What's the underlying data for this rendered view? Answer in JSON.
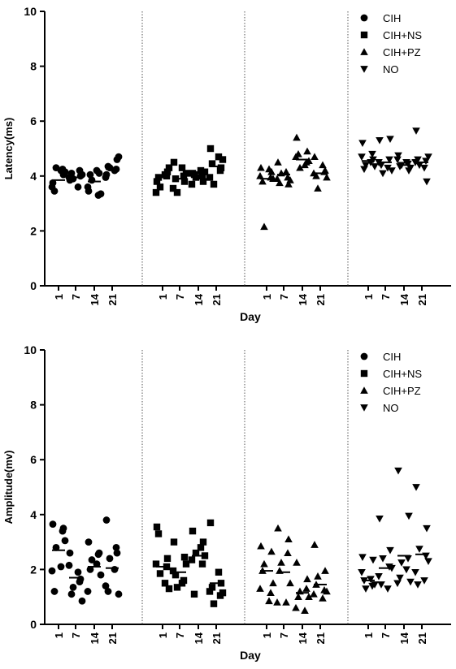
{
  "chart_data": [
    {
      "type": "scatter",
      "title": "",
      "xlabel": "Day",
      "ylabel": "Latency(ms)",
      "ylim": [
        0,
        10
      ],
      "yticks": [
        "0",
        "2",
        "4",
        "6",
        "8",
        "10"
      ],
      "categories": [
        "1",
        "7",
        "14",
        "21"
      ],
      "grid": false,
      "legend_position": "top-right",
      "series": [
        {
          "name": "CIH",
          "marker": "circle",
          "points": [
            [
              3.75,
              4.05,
              4.3,
              4.15,
              3.6,
              4.2,
              3.45,
              4.25
            ],
            [
              3.85,
              4.0,
              3.9,
              4.05,
              3.95,
              3.6,
              4.1,
              4.2
            ],
            [
              3.45,
              4.1,
              3.85,
              3.35,
              3.6,
              4.2,
              4.05,
              3.3
            ],
            [
              4.05,
              4.6,
              4.3,
              4.7,
              3.95,
              4.2,
              4.35,
              4.25
            ]
          ],
          "means": [
            3.85,
            3.95,
            3.8,
            4.25
          ]
        },
        {
          "name": "CIH+NS",
          "marker": "square",
          "points": [
            [
              3.8,
              4.15,
              3.6,
              4.3,
              3.4,
              4.05,
              3.95,
              4.0
            ],
            [
              4.5,
              3.8,
              3.4,
              4.1,
              3.55,
              4.3,
              3.9,
              4.0
            ],
            [
              4.1,
              3.8,
              3.95,
              4.15,
              3.7,
              4.2,
              4.05,
              4.0
            ],
            [
              5.0,
              4.3,
              3.7,
              4.6,
              3.95,
              4.7,
              4.45,
              4.2
            ]
          ],
          "means": [
            3.95,
            3.9,
            4.0,
            4.35
          ]
        },
        {
          "name": "CIH+PZ",
          "marker": "triangle-up",
          "points": [
            [
              4.3,
              4.15,
              2.15,
              3.9,
              4.0,
              4.25,
              3.8,
              3.95
            ],
            [
              4.5,
              3.7,
              4.1,
              3.85,
              3.9,
              4.15,
              3.75,
              3.95
            ],
            [
              5.4,
              4.9,
              4.3,
              4.55,
              4.7,
              4.4,
              4.8,
              4.5
            ],
            [
              4.7,
              4.2,
              3.55,
              3.95,
              4.1,
              4.4,
              4.0,
              4.15
            ]
          ],
          "means": [
            3.9,
            4.05,
            4.6,
            4.1
          ]
        },
        {
          "name": "NO",
          "marker": "triangle-down",
          "points": [
            [
              5.2,
              4.6,
              4.4,
              4.35,
              4.7,
              4.5,
              4.25,
              4.8
            ],
            [
              5.3,
              5.35,
              4.1,
              4.2,
              4.5,
              4.3,
              4.4,
              4.6
            ],
            [
              4.75,
              4.2,
              4.4,
              4.3,
              4.6,
              4.5,
              4.35,
              4.45
            ],
            [
              5.65,
              3.8,
              4.4,
              4.7,
              4.5,
              4.3,
              4.6,
              4.55
            ]
          ],
          "means": [
            4.55,
            4.5,
            4.4,
            4.5
          ]
        }
      ]
    },
    {
      "type": "scatter",
      "title": "",
      "xlabel": "Day",
      "ylabel": "Amplitude(mv)",
      "ylim": [
        0,
        10
      ],
      "yticks": [
        "0",
        "2",
        "4",
        "6",
        "8",
        "10"
      ],
      "categories": [
        "1",
        "7",
        "14",
        "21"
      ],
      "grid": false,
      "legend_position": "top-right",
      "series": [
        {
          "name": "CIH",
          "marker": "circle",
          "points": [
            [
              3.65,
              3.5,
              2.8,
              3.05,
              1.95,
              2.1,
              1.2,
              3.4
            ],
            [
              2.6,
              1.65,
              1.35,
              0.85,
              2.15,
              1.9,
              1.1,
              1.55
            ],
            [
              3.0,
              2.6,
              2.35,
              1.8,
              1.2,
              2.2,
              2.0,
              2.55
            ],
            [
              3.8,
              2.6,
              2.4,
              1.1,
              1.4,
              2.0,
              1.2,
              2.8
            ]
          ],
          "means": [
            2.7,
            1.7,
            2.1,
            2.05
          ]
        },
        {
          "name": "CIH+NS",
          "marker": "square",
          "points": [
            [
              3.55,
              2.4,
              1.85,
              1.3,
              2.2,
              1.5,
              3.3,
              2.1
            ],
            [
              3.0,
              2.45,
              1.35,
              2.2,
              1.95,
              1.5,
              1.8,
              1.6
            ],
            [
              3.4,
              3.0,
              2.6,
              2.5,
              2.35,
              2.8,
              1.1,
              2.2
            ],
            [
              3.7,
              1.5,
              0.75,
              1.15,
              1.2,
              1.9,
              1.35,
              1.05
            ]
          ],
          "means": [
            2.1,
            1.9,
            2.5,
            1.5
          ]
        },
        {
          "name": "CIH+PZ",
          "marker": "triangle-up",
          "points": [
            [
              2.85,
              2.65,
              2.2,
              1.5,
              1.3,
              0.85,
              1.95,
              1.15
            ],
            [
              3.5,
              3.1,
              2.25,
              1.5,
              0.8,
              0.8,
              1.95,
              2.6
            ],
            [
              2.25,
              1.65,
              1.2,
              1.0,
              0.6,
              0.5,
              1.0,
              1.3
            ],
            [
              2.9,
              1.95,
              1.75,
              1.2,
              1.1,
              0.95,
              1.45,
              1.25
            ]
          ],
          "means": [
            1.95,
            1.9,
            1.15,
            1.45
          ]
        },
        {
          "name": "NO",
          "marker": "triangle-down",
          "points": [
            [
              2.45,
              2.35,
              1.3,
              1.45,
              1.9,
              1.65,
              1.6,
              1.4
            ],
            [
              3.85,
              2.7,
              2.4,
              2.05,
              1.75,
              1.3,
              1.45,
              2.1
            ],
            [
              5.6,
              3.95,
              2.25,
              1.55,
              1.5,
              2.0,
              1.7,
              2.4
            ],
            [
              5.0,
              3.5,
              2.75,
              2.3,
              1.9,
              1.6,
              1.45,
              2.5
            ]
          ],
          "means": [
            1.6,
            2.05,
            2.5,
            2.55
          ]
        }
      ]
    }
  ]
}
